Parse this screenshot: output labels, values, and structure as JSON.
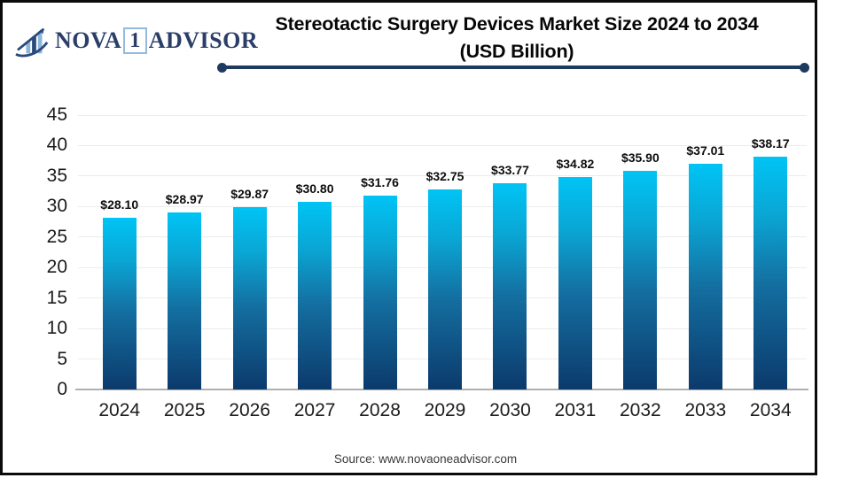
{
  "logo": {
    "part1": "NOVA",
    "part2": "1",
    "part3": "ADVISOR"
  },
  "title": {
    "line1": "Stereotactic Surgery Devices Market Size 2024 to 2034",
    "line2": "(USD Billion)"
  },
  "footer": {
    "source": "Source: www.novaoneadvisor.com"
  },
  "colors": {
    "bar_top": "#00c4f5",
    "bar_upper_mid": "#0aa6d4",
    "bar_mid": "#146ea0",
    "bar_bottom": "#0c3a6c",
    "accent_navy": "#1e3a5f",
    "logo_navy": "#2a3e68",
    "logo_light_blue": "#8db6dc",
    "logo_box_border": "#93bade",
    "gridline": "#ececec",
    "baseline": "#b0b0b0"
  },
  "chart_data": {
    "type": "bar",
    "title": "Stereotactic Surgery Devices Market Size 2024 to 2034 (USD Billion)",
    "categories": [
      "2024",
      "2025",
      "2026",
      "2027",
      "2028",
      "2029",
      "2030",
      "2031",
      "2032",
      "2033",
      "2034"
    ],
    "values": [
      28.1,
      28.97,
      29.87,
      30.8,
      31.76,
      32.75,
      33.77,
      34.82,
      35.9,
      37.01,
      38.17
    ],
    "value_labels": [
      "$28.10",
      "$28.97",
      "$29.87",
      "$30.80",
      "$31.76",
      "$32.75",
      "$33.77",
      "$34.82",
      "$35.90",
      "$37.01",
      "$38.17"
    ],
    "xlabel": "",
    "ylabel": "",
    "ylim": [
      0,
      45
    ],
    "y_ticks": [
      0,
      5,
      10,
      15,
      20,
      25,
      30,
      35,
      40,
      45
    ],
    "grid": true,
    "legend": false
  }
}
